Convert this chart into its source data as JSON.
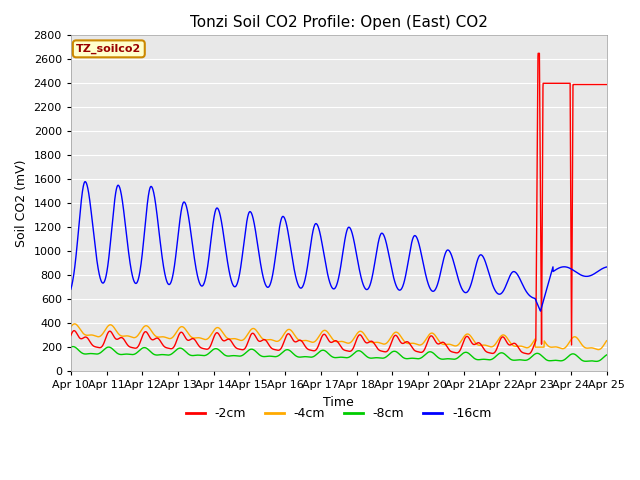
{
  "title": "Tonzi Soil CO2 Profile: Open (East) CO2",
  "ylabel": "Soil CO2 (mV)",
  "xlabel": "Time",
  "ylim": [
    0,
    2800
  ],
  "yticks": [
    0,
    200,
    400,
    600,
    800,
    1000,
    1200,
    1400,
    1600,
    1800,
    2000,
    2200,
    2400,
    2600,
    2800
  ],
  "xtick_labels": [
    "Apr 10",
    "Apr 11",
    "Apr 12",
    "Apr 13",
    "Apr 14",
    "Apr 15",
    "Apr 16",
    "Apr 17",
    "Apr 18",
    "Apr 19",
    "Apr 20",
    "Apr 21",
    "Apr 22",
    "Apr 23",
    "Apr 24",
    "Apr 25"
  ],
  "legend_label": "TZ_soilco2",
  "legend_entries": [
    "-2cm",
    "-4cm",
    "-8cm",
    "-16cm"
  ],
  "legend_colors": [
    "#ff0000",
    "#ffaa00",
    "#00cc00",
    "#0000ff"
  ],
  "fig_bg_color": "#ffffff",
  "plot_bg_color": "#e8e8e8",
  "grid_color": "#ffffff",
  "title_fontsize": 11,
  "axis_label_fontsize": 9,
  "tick_fontsize": 8,
  "blue_peaks": [
    1580,
    1550,
    1540,
    1410,
    1360,
    1330,
    1290,
    1230,
    1200,
    1150,
    1130,
    1010,
    970,
    830
  ],
  "blue_trough": 600,
  "blue_final_peak": 870,
  "blue_final_trough": 830
}
